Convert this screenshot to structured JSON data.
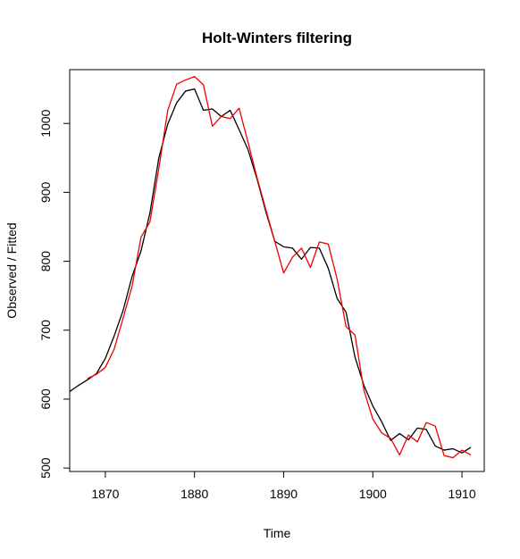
{
  "chart_data": {
    "type": "line",
    "title": "Holt-Winters filtering",
    "xlabel": "Time",
    "ylabel": "Observed / Fitted",
    "xlim": [
      1866,
      1912.5
    ],
    "ylim": [
      495,
      1078
    ],
    "x_ticks": [
      1870,
      1880,
      1890,
      1900,
      1910
    ],
    "y_ticks": [
      500,
      600,
      700,
      800,
      900,
      1000
    ],
    "grid": false,
    "legend": "none",
    "series": [
      {
        "color": "#000000",
        "x": [
          1866,
          1867,
          1868,
          1869,
          1870,
          1871,
          1872,
          1873,
          1874,
          1875,
          1876,
          1877,
          1878,
          1879,
          1880,
          1881,
          1882,
          1883,
          1884,
          1885,
          1886,
          1887,
          1888,
          1889,
          1890,
          1891,
          1892,
          1893,
          1894,
          1895,
          1896,
          1897,
          1898,
          1899,
          1900,
          1901,
          1902,
          1903,
          1904,
          1905,
          1906,
          1907,
          1908,
          1909,
          1910,
          1911
        ],
        "y": [
          611,
          620,
          628,
          637,
          659,
          692,
          729,
          778,
          815,
          870,
          950,
          999,
          1030,
          1047,
          1050,
          1019,
          1021,
          1010,
          1019,
          991,
          962,
          920,
          872,
          829,
          821,
          819,
          803,
          820,
          819,
          790,
          746,
          726,
          661,
          620,
          590,
          567,
          540,
          550,
          541,
          558,
          556,
          532,
          526,
          528,
          522,
          530
        ]
      },
      {
        "color": "#ee0000",
        "x": [
          1868,
          1869,
          1870,
          1871,
          1872,
          1873,
          1874,
          1875,
          1876,
          1877,
          1878,
          1879,
          1880,
          1881,
          1882,
          1883,
          1884,
          1885,
          1886,
          1887,
          1888,
          1889,
          1890,
          1891,
          1892,
          1893,
          1894,
          1895,
          1896,
          1897,
          1898,
          1899,
          1900,
          1901,
          1902,
          1903,
          1904,
          1905,
          1906,
          1907,
          1908,
          1909,
          1910,
          1911
        ],
        "y": [
          630,
          636,
          646,
          673,
          718,
          764,
          835,
          857,
          935,
          1019,
          1057,
          1063,
          1068,
          1056,
          996,
          1010,
          1007,
          1022,
          973,
          922,
          875,
          829,
          783,
          806,
          819,
          791,
          828,
          825,
          774,
          705,
          693,
          613,
          571,
          551,
          543,
          519,
          548,
          538,
          566,
          561,
          518,
          515,
          526,
          519
        ]
      }
    ]
  }
}
